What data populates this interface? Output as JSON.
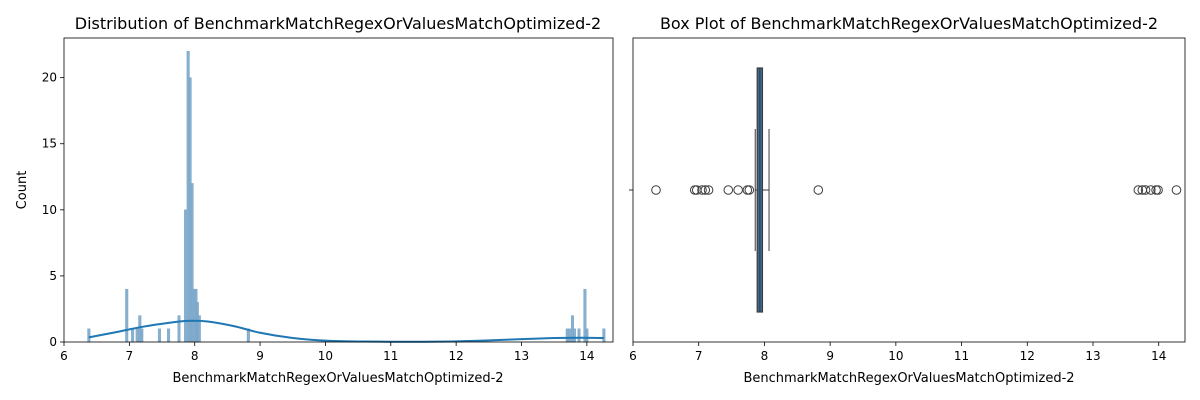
{
  "chart_data": [
    {
      "type": "bar",
      "subtype": "histogram-with-kde",
      "title": "Distribution of BenchmarkMatchRegexOrValuesMatchOptimized-2",
      "xlabel": "BenchmarkMatchRegexOrValuesMatchOptimized-2",
      "ylabel": "Count",
      "xlim": [
        6.0,
        14.4
      ],
      "ylim": [
        0,
        23
      ],
      "xticks": [
        6,
        7,
        8,
        9,
        10,
        11,
        12,
        13,
        14
      ],
      "yticks": [
        0,
        5,
        10,
        15,
        20
      ],
      "bar_color": "#7aa6c9",
      "kde_color": "#1f77b4",
      "bars": [
        {
          "x": 6.38,
          "count": 1
        },
        {
          "x": 6.96,
          "count": 4
        },
        {
          "x": 7.05,
          "count": 1
        },
        {
          "x": 7.12,
          "count": 1
        },
        {
          "x": 7.16,
          "count": 2
        },
        {
          "x": 7.19,
          "count": 1
        },
        {
          "x": 7.46,
          "count": 1
        },
        {
          "x": 7.6,
          "count": 1
        },
        {
          "x": 7.76,
          "count": 2
        },
        {
          "x": 7.86,
          "count": 10
        },
        {
          "x": 7.9,
          "count": 22
        },
        {
          "x": 7.93,
          "count": 20
        },
        {
          "x": 7.96,
          "count": 12
        },
        {
          "x": 7.99,
          "count": 4
        },
        {
          "x": 8.02,
          "count": 4
        },
        {
          "x": 8.04,
          "count": 3
        },
        {
          "x": 8.07,
          "count": 2
        },
        {
          "x": 8.82,
          "count": 1
        },
        {
          "x": 13.7,
          "count": 1
        },
        {
          "x": 13.74,
          "count": 1
        },
        {
          "x": 13.78,
          "count": 2
        },
        {
          "x": 13.81,
          "count": 1
        },
        {
          "x": 13.88,
          "count": 1
        },
        {
          "x": 13.97,
          "count": 4
        },
        {
          "x": 14.0,
          "count": 1
        },
        {
          "x": 14.26,
          "count": 1
        }
      ],
      "kde": {
        "x": [
          6.38,
          6.8,
          7.2,
          7.6,
          7.9,
          8.2,
          8.6,
          9.0,
          9.5,
          10.0,
          10.5,
          11.0,
          11.5,
          12.0,
          12.5,
          13.0,
          13.5,
          13.9,
          14.26
        ],
        "y": [
          0.35,
          0.75,
          1.15,
          1.45,
          1.6,
          1.55,
          1.2,
          0.7,
          0.3,
          0.1,
          0.04,
          0.02,
          0.02,
          0.05,
          0.12,
          0.22,
          0.3,
          0.32,
          0.3
        ]
      }
    },
    {
      "type": "box",
      "title": "Box Plot of BenchmarkMatchRegexOrValuesMatchOptimized-2",
      "xlabel": "BenchmarkMatchRegexOrValuesMatchOptimized-2",
      "xlim": [
        6.0,
        14.4
      ],
      "xticks": [
        6,
        7,
        8,
        9,
        10,
        11,
        12,
        13,
        14
      ],
      "box_color": "#3a6d99",
      "q1": 7.89,
      "median": 7.93,
      "q3": 7.97,
      "whisker_low": 7.86,
      "whisker_high": 8.07,
      "outliers": [
        6.35,
        6.94,
        6.97,
        7.05,
        7.1,
        7.15,
        7.45,
        7.6,
        7.74,
        7.77,
        8.82,
        13.69,
        13.75,
        13.8,
        13.88,
        13.96,
        13.99,
        14.27
      ]
    }
  ]
}
